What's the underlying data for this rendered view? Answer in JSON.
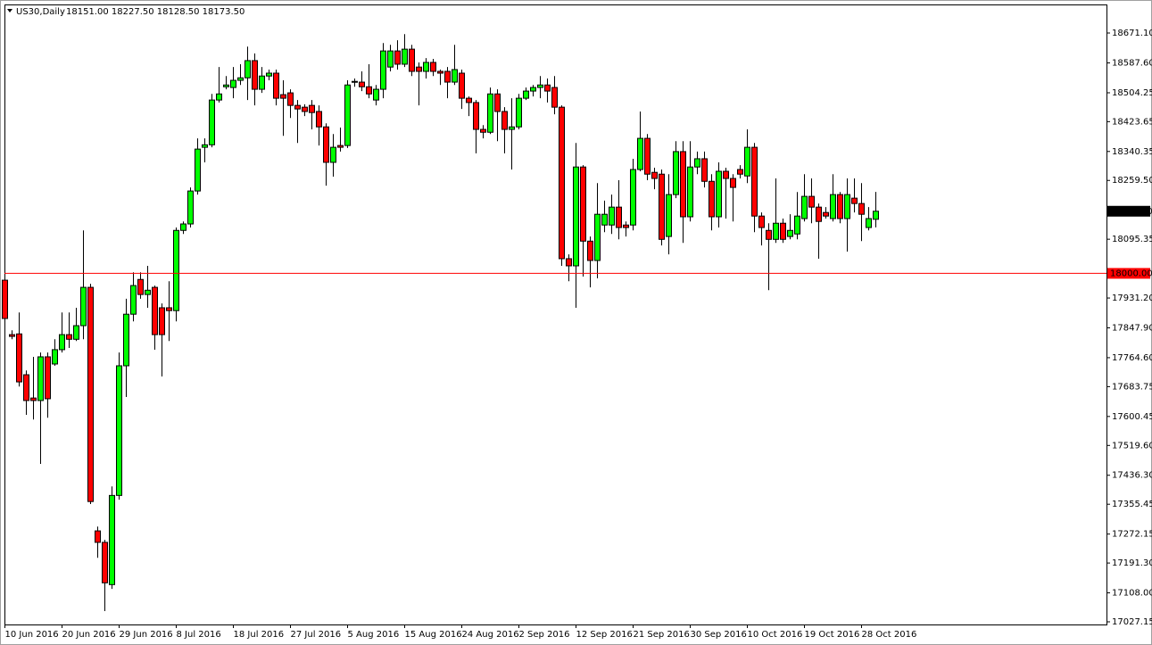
{
  "chart_data": {
    "type": "candlestick",
    "title": "US30,Daily",
    "ohlc_label": "18151.00 18227.50 18128.50 18173.50",
    "up_color": "#00ff00",
    "down_color": "#ff0000",
    "categories": [
      "10 Jun 2016",
      null,
      null,
      null,
      null,
      null,
      null,
      null,
      "20 Jun 2016",
      null,
      null,
      null,
      null,
      null,
      null,
      null,
      "29 Jun 2016",
      null,
      null,
      null,
      null,
      null,
      null,
      null,
      "8 Jul 2016",
      null,
      null,
      null,
      null,
      null,
      null,
      null,
      "18 Jul 2016",
      null,
      null,
      null,
      null,
      null,
      null,
      null,
      "27 Jul 2016",
      null,
      null,
      null,
      null,
      null,
      null,
      null,
      "5 Aug 2016",
      null,
      null,
      null,
      null,
      null,
      null,
      null,
      "15 Aug 2016",
      null,
      null,
      null,
      null,
      null,
      null,
      null,
      "24 Aug 2016",
      null,
      null,
      null,
      null,
      null,
      null,
      null,
      "2 Sep 2016",
      null,
      null,
      null,
      null,
      null,
      null,
      null,
      "12 Sep 2016",
      null,
      null,
      null,
      null,
      null,
      null,
      null,
      "21 Sep 2016",
      null,
      null,
      null,
      null,
      null,
      null,
      null,
      "30 Sep 2016",
      null,
      null,
      null,
      null,
      null,
      null,
      null,
      "10 Oct 2016",
      null,
      null,
      null,
      null,
      null,
      null,
      null,
      "19 Oct 2016",
      null,
      null,
      null,
      null,
      null,
      null,
      null,
      "28 Oct 2016",
      null,
      null
    ],
    "open": [
      17981,
      17829,
      17831,
      17717,
      17652,
      17645,
      17767,
      17747,
      17787,
      17829,
      17816,
      17854,
      17961,
      17281,
      17249,
      17131,
      17380,
      17742,
      17886,
      17983,
      17941,
      17961,
      17904,
      17904,
      17896,
      18120,
      18138,
      18230,
      18352,
      18359,
      18484,
      18521,
      18519,
      18539,
      18546,
      18594,
      18514,
      18551,
      18559,
      18499,
      18504,
      18469,
      18464,
      18469,
      18452,
      18409,
      18310,
      18357,
      18357,
      18534,
      18534,
      18521,
      18484,
      18514,
      18576,
      18621,
      18584,
      18626,
      18576,
      18564,
      18589,
      18564,
      18564,
      18534,
      18559,
      18489,
      18477,
      18402,
      18394,
      18501,
      18452,
      18402,
      18409,
      18489,
      18509,
      18519,
      18526,
      18519,
      18464,
      18041,
      18021,
      18297,
      18090,
      18036,
      18135,
      18135,
      18185,
      18135,
      18135,
      18290,
      18377,
      18282,
      18277,
      18103,
      18220,
      18340,
      18158,
      18297,
      18320,
      18257,
      18158,
      18285,
      18265,
      18290,
      18272,
      18352,
      18160,
      18120,
      18095,
      18140,
      18103,
      18110,
      18153,
      18215,
      18185,
      18170,
      18153,
      18220,
      18153,
      18210,
      18195,
      18128,
      18151
    ],
    "high": [
      17991,
      17841,
      17891,
      17729,
      17767,
      17779,
      17779,
      17816,
      17891,
      17891,
      17904,
      18120,
      17971,
      17293,
      17256,
      17405,
      17779,
      17929,
      18003,
      18003,
      18021,
      17966,
      17916,
      17978,
      18128,
      18145,
      18240,
      18377,
      18377,
      18501,
      18576,
      18551,
      18576,
      18584,
      18633,
      18614,
      18576,
      18569,
      18569,
      18539,
      18514,
      18484,
      18472,
      18484,
      18469,
      18419,
      18389,
      18407,
      18539,
      18544,
      18564,
      18584,
      18526,
      18643,
      18638,
      18651,
      18668,
      18638,
      18589,
      18601,
      18599,
      18569,
      18576,
      18638,
      18569,
      18494,
      18484,
      18414,
      18519,
      18514,
      18464,
      18489,
      18501,
      18519,
      18526,
      18551,
      18544,
      18551,
      18469,
      18053,
      18364,
      18302,
      18103,
      18252,
      18203,
      18220,
      18260,
      18145,
      18320,
      18452,
      18389,
      18295,
      18290,
      18277,
      18369,
      18369,
      18369,
      18340,
      18340,
      18277,
      18310,
      18295,
      18277,
      18302,
      18402,
      18364,
      18170,
      18140,
      18265,
      18153,
      18165,
      18227,
      18277,
      18265,
      18195,
      18185,
      18277,
      18227,
      18265,
      18265,
      18252,
      18185,
      18227.5
    ],
    "low": [
      17816,
      17816,
      17684,
      17605,
      17592,
      17468,
      17597,
      17742,
      17779,
      17792,
      17811,
      17816,
      17356,
      17206,
      17057,
      17119,
      17368,
      17655,
      17866,
      17929,
      17904,
      17787,
      17712,
      17811,
      17866,
      18110,
      18128,
      18220,
      18310,
      18352,
      18477,
      18514,
      18489,
      18526,
      18484,
      18469,
      18504,
      18539,
      18469,
      18384,
      18434,
      18364,
      18439,
      18402,
      18357,
      18245,
      18270,
      18340,
      18350,
      18521,
      18509,
      18489,
      18469,
      18489,
      18564,
      18569,
      18576,
      18551,
      18469,
      18544,
      18551,
      18526,
      18489,
      18526,
      18459,
      18439,
      18335,
      18377,
      18389,
      18369,
      18335,
      18290,
      18402,
      18484,
      18494,
      18489,
      18477,
      18444,
      18021,
      17978,
      17904,
      17991,
      17961,
      17986,
      18115,
      18110,
      18095,
      18103,
      18120,
      18285,
      18260,
      18235,
      18078,
      18053,
      18210,
      18085,
      18145,
      18277,
      18240,
      18120,
      18128,
      18153,
      18145,
      18265,
      18252,
      18115,
      18078,
      17953,
      18085,
      18085,
      18095,
      18095,
      18145,
      18140,
      18041,
      18153,
      18145,
      18140,
      18061,
      18170,
      18090,
      18120,
      18128.5
    ],
    "close": [
      17874,
      17824,
      17697,
      17645,
      17645,
      17767,
      17650,
      17787,
      17829,
      17816,
      17854,
      17961,
      17363,
      17249,
      17136,
      17380,
      17742,
      17886,
      17966,
      17941,
      17953,
      17829,
      17829,
      17896,
      18120,
      18138,
      18230,
      18347,
      18359,
      18484,
      18501,
      18526,
      18539,
      18546,
      18594,
      18514,
      18551,
      18559,
      18489,
      18489,
      18469,
      18459,
      18452,
      18449,
      18409,
      18310,
      18352,
      18352,
      18526,
      18536,
      18521,
      18501,
      18514,
      18621,
      18621,
      18584,
      18626,
      18564,
      18564,
      18589,
      18564,
      18559,
      18534,
      18569,
      18489,
      18477,
      18402,
      18394,
      18501,
      18452,
      18402,
      18409,
      18489,
      18509,
      18519,
      18526,
      18509,
      18464,
      18041,
      18021,
      18297,
      18090,
      18036,
      18165,
      18165,
      18185,
      18128,
      18128,
      18290,
      18377,
      18277,
      18265,
      18095,
      18220,
      18340,
      18158,
      18297,
      18320,
      18257,
      18158,
      18285,
      18265,
      18240,
      18277,
      18352,
      18160,
      18128,
      18095,
      18140,
      18095,
      18120,
      18160,
      18215,
      18185,
      18145,
      18160,
      18220,
      18153,
      18220,
      18195,
      18165,
      18153,
      18173.5
    ],
    "ylim": [
      17019.7,
      18750.8
    ],
    "yticks": [
      {
        "value": 18671.1,
        "label": "18671.10"
      },
      {
        "value": 18587.6,
        "label": "18587.60"
      },
      18504.25,
      18423.65,
      18340.35,
      {
        "value": 18259.5,
        "label": "18259.50"
      },
      18095.35,
      {
        "value": 17931.2,
        "label": "17931.20"
      },
      {
        "value": 17847.9,
        "label": "17847.90"
      },
      {
        "value": 17764.6,
        "label": "17764.60"
      },
      17683.75,
      17600.45,
      {
        "value": 17519.6,
        "label": "17519.60"
      },
      {
        "value": 17436.3,
        "label": "17436.30"
      },
      17355.45,
      17272.15,
      {
        "value": 17191.3,
        "label": "17191.30"
      },
      {
        "value": 17108,
        "label": "17108.00"
      },
      17027.15
    ],
    "hline": {
      "value": 18000,
      "label": "18000.00",
      "color": "#ff0000"
    },
    "last_price": {
      "value": 18173.5,
      "label": "18173.50"
    }
  }
}
